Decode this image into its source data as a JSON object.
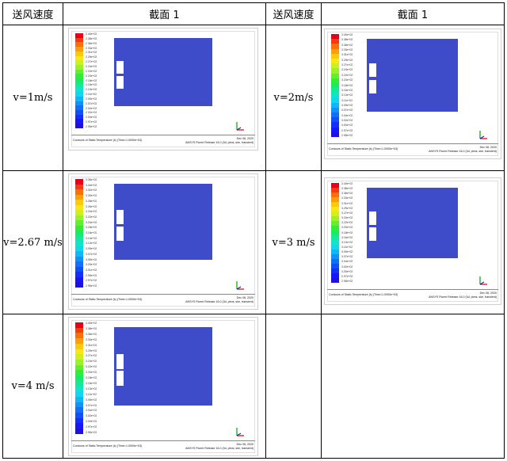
{
  "headers": {
    "col1": "送风速度",
    "col2": "截面 1",
    "col3": "送风速度",
    "col4": "截面 1"
  },
  "rows": [
    {
      "left_speed": "v=1m/s",
      "right_speed": "v=2m/s"
    },
    {
      "left_speed": "v=2.67 m/s",
      "right_speed": "v=3 m/s"
    },
    {
      "left_speed": "v=4 m/s",
      "right_speed": ""
    }
  ],
  "panels": [
    {
      "ticks": [
        "2.40e+02",
        "2.38e+02",
        "2.36e+02",
        "2.33e+02",
        "2.31e+02",
        "2.29e+02",
        "2.27e+02",
        "2.24e+02",
        "2.22e+02",
        "2.20e+02",
        "2.18e+02",
        "2.16e+02",
        "2.13e+02",
        "2.11e+02",
        "2.09e+02",
        "2.07e+02",
        "2.04e+02",
        "2.02e+02",
        "2.00e+02",
        "2.97e+02",
        "2.95e+02"
      ],
      "title": "Contours of Static Temperature (k)  (Time=1.0000e+03)",
      "date": "Dec 08, 2020",
      "release": "ANSYS Fluent Release 16.0 (3d, pbns, ske, transient)"
    },
    {
      "ticks": [
        "3.40e+02",
        "3.38e+02",
        "3.36e+02",
        "3.33e+02",
        "3.31e+02",
        "3.29e+02",
        "3.27e+02",
        "3.24e+02",
        "3.22e+02",
        "3.20e+02",
        "3.18e+02",
        "3.16e+02",
        "3.13e+02",
        "3.11e+02",
        "3.09e+02",
        "3.07e+02",
        "3.04e+02",
        "3.02e+02",
        "3.00e+02",
        "2.97e+02",
        "2.95e+02"
      ],
      "title": "Contours of Static Temperature (k)  (Time=1.0000e+03)",
      "date": "Dec 08, 2020",
      "release": "ANSYS Fluent Release 16.0 (3d, pbns, ske, transient)"
    },
    {
      "ticks": [
        "3.36e+02",
        "3.34e+02",
        "3.32e+02",
        "3.30e+02",
        "3.28e+02",
        "3.26e+02",
        "3.24e+02",
        "3.22e+02",
        "3.20e+02",
        "3.18e+02",
        "3.16e+02",
        "3.14e+02",
        "3.12e+02",
        "3.09e+02",
        "3.07e+02",
        "3.05e+02",
        "3.03e+02",
        "3.01e+02",
        "2.99e+02",
        "2.97e+02",
        "2.95e+02"
      ],
      "title": "Contours of Static Temperature (k)  (Time=1.0000e+03)",
      "date": "Dec 08, 2020",
      "release": "ANSYS Fluent Release 16.0 (3d, pbns, ske, transient)"
    },
    {
      "ticks": [
        "3.40e+02",
        "3.38e+02",
        "3.36e+02",
        "3.33e+02",
        "3.31e+02",
        "3.29e+02",
        "3.27e+02",
        "3.24e+02",
        "3.22e+02",
        "3.20e+02",
        "3.18e+02",
        "3.16e+02",
        "3.13e+02",
        "3.11e+02",
        "3.09e+02",
        "3.07e+02",
        "3.04e+02",
        "3.02e+02",
        "3.00e+02",
        "2.97e+02",
        "2.95e+02"
      ],
      "title": "Contours of Static Temperature (k)  (Time=1.0000e+03)",
      "date": "Dec 08, 2020",
      "release": "ANSYS Fluent Release 16.0 (3d, pbns, ske, transient)"
    },
    {
      "ticks": [
        "3.40e+02",
        "3.38e+02",
        "3.36e+02",
        "3.33e+02",
        "3.31e+02",
        "3.29e+02",
        "3.27e+02",
        "3.24e+02",
        "3.22e+02",
        "3.20e+02",
        "3.18e+02",
        "3.16e+02",
        "3.13e+02",
        "3.11e+02",
        "3.09e+02",
        "3.07e+02",
        "3.04e+02",
        "3.02e+02",
        "3.00e+02",
        "2.97e+02",
        "2.95e+02"
      ],
      "title": "Contours of Static Temperature (k)  (Time=1.0000e+03)",
      "date": "Dec 08, 2020",
      "release": "ANSYS Fluent Release 16.0 (3d, pbns, ske, transient)"
    }
  ],
  "colors": {
    "domain": "#3f4cc9",
    "grid": "#000000"
  }
}
